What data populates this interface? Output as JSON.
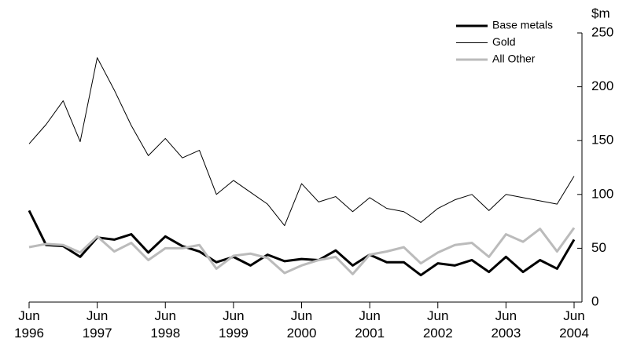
{
  "chart_data": {
    "type": "line",
    "y_label": "$m",
    "categories": [
      "Jun 1996",
      null,
      null,
      null,
      "Jun 1997",
      null,
      null,
      null,
      "Jun 1998",
      null,
      null,
      null,
      "Jun 1999",
      null,
      null,
      null,
      "Jun 2000",
      null,
      null,
      null,
      "Jun 2001",
      null,
      null,
      null,
      "Jun 2002",
      null,
      null,
      null,
      "Jun 2003",
      null,
      null,
      null,
      "Jun 2004"
    ],
    "series": [
      {
        "name": "Base metals",
        "color": "#000000",
        "line_width": 3,
        "values": [
          85,
          53,
          52,
          42,
          60,
          58,
          63,
          46,
          61,
          52,
          47,
          37,
          42,
          34,
          44,
          38,
          40,
          39,
          48,
          34,
          44,
          37,
          37,
          25,
          36,
          34,
          39,
          28,
          42,
          28,
          39,
          31,
          58
        ]
      },
      {
        "name": "Gold",
        "color": "#000000",
        "line_width": 1,
        "values": [
          147,
          165,
          187,
          149,
          227,
          197,
          164,
          136,
          152,
          134,
          141,
          100,
          113,
          102,
          91,
          71,
          110,
          93,
          98,
          84,
          97,
          87,
          84,
          74,
          87,
          95,
          100,
          85,
          100,
          97,
          94,
          91,
          117
        ]
      },
      {
        "name": "All Other",
        "color": "#bbbbbb",
        "line_width": 3,
        "values": [
          51,
          54,
          53,
          46,
          61,
          47,
          55,
          39,
          50,
          50,
          53,
          31,
          43,
          45,
          41,
          27,
          34,
          39,
          42,
          26,
          44,
          47,
          51,
          36,
          46,
          53,
          55,
          42,
          63,
          56,
          68,
          47,
          69
        ]
      }
    ],
    "ylim": [
      0,
      250
    ],
    "yticks": [
      0,
      50,
      100,
      150,
      200,
      250
    ],
    "grid": false,
    "legend": "top-right"
  }
}
